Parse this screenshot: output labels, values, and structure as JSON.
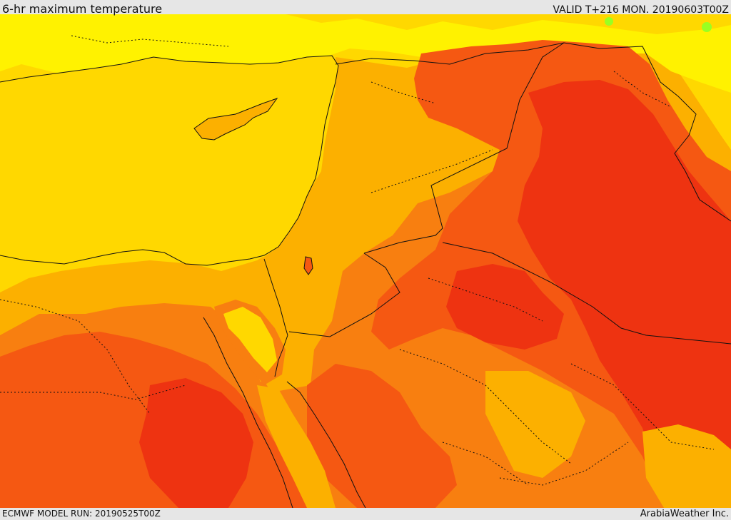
{
  "header": {
    "title": "6-hr maximum temperature",
    "valid": "VALID T+216 MON. 20190603T00Z"
  },
  "footer": {
    "model_run": "ECMWF MODEL RUN: 20190525T00Z",
    "credit": "ArabiaWeather Inc."
  },
  "colors": {
    "light_yellow": "#fff200",
    "yellow": "#ffd800",
    "light_orange": "#fcb000",
    "orange": "#f87f10",
    "dark_orange": "#f55812",
    "red": "#ee3311",
    "bright_green": "#99ff22",
    "border": "#111111"
  }
}
